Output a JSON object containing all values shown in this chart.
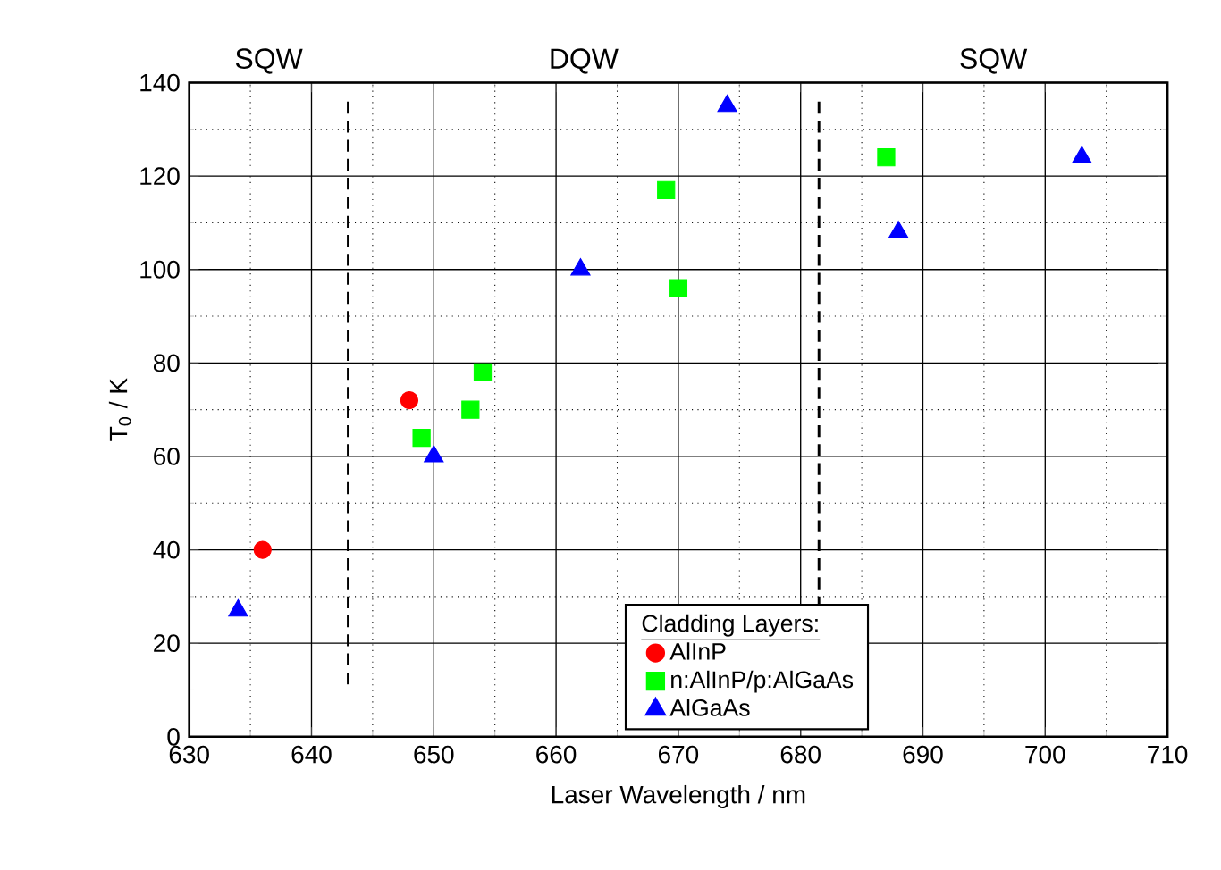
{
  "chart_data": {
    "type": "scatter",
    "xlabel": "Laser Wavelength / nm",
    "ylabel": "T$_{0}$ / K",
    "legend_title": "Cladding Layers:",
    "xlim": [
      630,
      710
    ],
    "xticks": [
      630,
      640,
      650,
      660,
      670,
      680,
      690,
      700,
      710
    ],
    "ylim": [
      0,
      140
    ],
    "yticks": [
      0,
      20,
      40,
      60,
      80,
      100,
      120,
      140
    ],
    "grid": true,
    "legend": "bottom",
    "series": [
      {
        "name": "AlInP",
        "color": "#ff0000",
        "marker": "circle",
        "x": [
          636,
          648
        ],
        "values": [
          40,
          72
        ]
      },
      {
        "name": "n:AlInP/p:AlGaAs",
        "color": "#00ff00",
        "marker": "square",
        "x": [
          649,
          653,
          654,
          669,
          670,
          687
        ],
        "values": [
          64,
          70,
          78,
          117,
          96,
          124
        ]
      },
      {
        "name": "AlGaAs",
        "color": "#0000ff",
        "marker": "triangle",
        "x": [
          634,
          650,
          662,
          674,
          688,
          703
        ],
        "values": [
          27,
          60,
          100,
          135,
          108,
          124
        ]
      }
    ],
    "ref_lines": [
      {
        "axis": "x",
        "value": 643,
        "line_style": "dashed"
      },
      {
        "axis": "x",
        "value": 681.5,
        "line_style": "dashed"
      }
    ],
    "annotations": [
      "SQW",
      "DQW",
      "SQW"
    ]
  }
}
